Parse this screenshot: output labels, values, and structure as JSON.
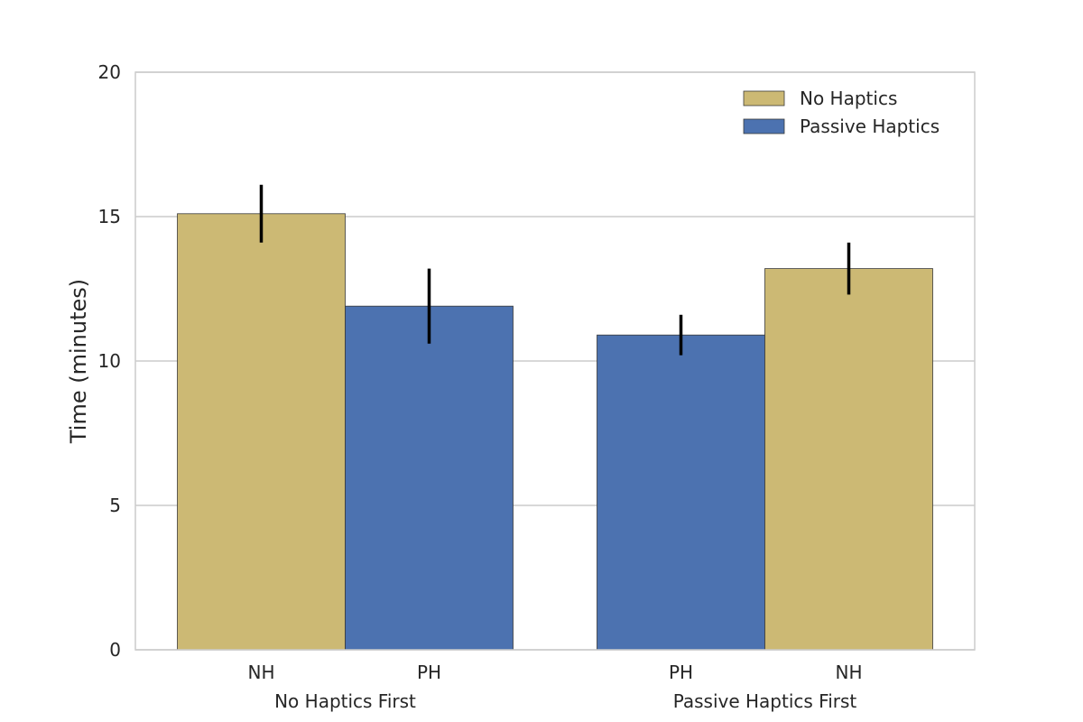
{
  "chart_data": {
    "type": "bar",
    "ylabel": "Time (minutes)",
    "ylim": [
      0,
      20
    ],
    "yticks": [
      "0",
      "5",
      "10",
      "15",
      "20"
    ],
    "grid": true,
    "legend_position": "top-right",
    "legend": [
      {
        "label": "No Haptics",
        "color": "#ccb974"
      },
      {
        "label": "Passive Haptics",
        "color": "#4c72b0"
      }
    ],
    "groups": [
      {
        "label": "No Haptics First",
        "bars": [
          {
            "label": "NH",
            "value": 15.1,
            "err_low": 14.1,
            "err_high": 16.1,
            "color": "#ccb974"
          },
          {
            "label": "PH",
            "value": 11.9,
            "err_low": 10.6,
            "err_high": 13.2,
            "color": "#4c72b0"
          }
        ]
      },
      {
        "label": "Passive Haptics First",
        "bars": [
          {
            "label": "PH",
            "value": 10.9,
            "err_low": 10.2,
            "err_high": 11.6,
            "color": "#4c72b0"
          },
          {
            "label": "NH",
            "value": 13.2,
            "err_low": 12.3,
            "err_high": 14.1,
            "color": "#ccb974"
          }
        ]
      }
    ]
  }
}
